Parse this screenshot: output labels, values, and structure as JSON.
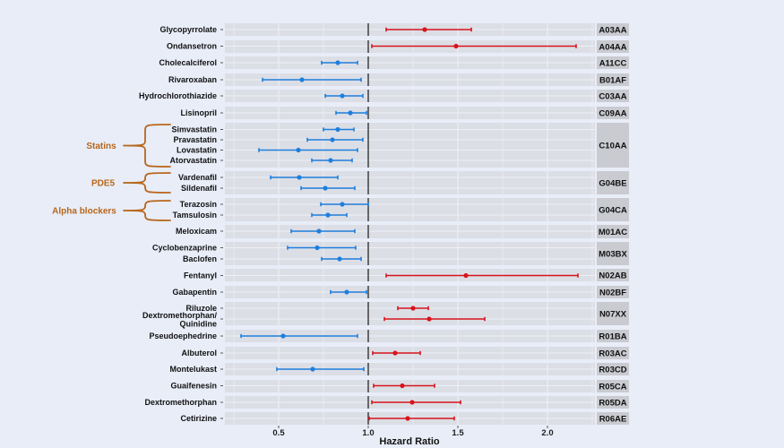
{
  "colors": {
    "background": "#e8edf8",
    "panel": "#dcdee6",
    "grid": "#eef0f5",
    "strip": "#c9cbd1",
    "protective": "#1e7fdc",
    "risk": "#d8141b",
    "reference": "#333333",
    "group": "#b8661a"
  },
  "chart_data": {
    "type": "forest",
    "xlabel": "Hazard Ratio",
    "xlim": [
      0.2,
      2.26
    ],
    "reference_line": 1.0,
    "xticks": [
      {
        "value": 0.5,
        "label": "0.5"
      },
      {
        "value": 1.0,
        "label": "1.0"
      },
      {
        "value": 1.5,
        "label": "1.5"
      },
      {
        "value": 2.0,
        "label": "2.0"
      }
    ],
    "panels": [
      {
        "code": "A03AA",
        "drugs": [
          {
            "name": "Glycopyrrolate",
            "hr": 1.315,
            "lo": 1.1,
            "hi": 1.575
          }
        ]
      },
      {
        "code": "A04AA",
        "drugs": [
          {
            "name": "Ondansetron",
            "hr": 1.49,
            "lo": 1.02,
            "hi": 2.16
          }
        ]
      },
      {
        "code": "A11CC",
        "drugs": [
          {
            "name": "Cholecalciferol",
            "hr": 0.83,
            "lo": 0.74,
            "hi": 0.94
          }
        ]
      },
      {
        "code": "B01AF",
        "drugs": [
          {
            "name": "Rivaroxaban",
            "hr": 0.63,
            "lo": 0.41,
            "hi": 0.96
          }
        ]
      },
      {
        "code": "C03AA",
        "drugs": [
          {
            "name": "Hydrochlorothiazide",
            "hr": 0.855,
            "lo": 0.76,
            "hi": 0.97
          }
        ]
      },
      {
        "code": "C09AA",
        "drugs": [
          {
            "name": "Lisinopril",
            "hr": 0.9,
            "lo": 0.82,
            "hi": 0.99
          }
        ]
      },
      {
        "code": "C10AA",
        "drugs": [
          {
            "name": "Simvastatin",
            "hr": 0.83,
            "lo": 0.75,
            "hi": 0.92
          },
          {
            "name": "Pravastatin",
            "hr": 0.8,
            "lo": 0.66,
            "hi": 0.97
          },
          {
            "name": "Lovastatin",
            "hr": 0.61,
            "lo": 0.39,
            "hi": 0.94
          },
          {
            "name": "Atorvastatin",
            "hr": 0.79,
            "lo": 0.685,
            "hi": 0.91
          }
        ]
      },
      {
        "code": "G04BE",
        "drugs": [
          {
            "name": "Vardenafil",
            "hr": 0.615,
            "lo": 0.455,
            "hi": 0.83
          },
          {
            "name": "Sildenafil",
            "hr": 0.76,
            "lo": 0.625,
            "hi": 0.925
          }
        ]
      },
      {
        "code": "G04CA",
        "drugs": [
          {
            "name": "Terazosin",
            "hr": 0.855,
            "lo": 0.735,
            "hi": 1.0
          },
          {
            "name": "Tamsulosin",
            "hr": 0.775,
            "lo": 0.685,
            "hi": 0.88
          }
        ]
      },
      {
        "code": "M01AC",
        "drugs": [
          {
            "name": "Meloxicam",
            "hr": 0.725,
            "lo": 0.57,
            "hi": 0.925
          }
        ]
      },
      {
        "code": "M03BX",
        "drugs": [
          {
            "name": "Cyclobenzaprine",
            "hr": 0.715,
            "lo": 0.55,
            "hi": 0.93
          },
          {
            "name": "Baclofen",
            "hr": 0.84,
            "lo": 0.74,
            "hi": 0.96
          }
        ]
      },
      {
        "code": "N02AB",
        "drugs": [
          {
            "name": "Fentanyl",
            "hr": 1.545,
            "lo": 1.1,
            "hi": 2.17
          }
        ]
      },
      {
        "code": "N02BF",
        "drugs": [
          {
            "name": "Gabapentin",
            "hr": 0.88,
            "lo": 0.79,
            "hi": 0.99
          }
        ]
      },
      {
        "code": "N07XX",
        "drugs": [
          {
            "name": "Riluzole",
            "hr": 1.25,
            "lo": 1.165,
            "hi": 1.335
          },
          {
            "name": "Dextromethorphan/ Quinidine",
            "name_lines": [
              "Dextromethorphan/",
              "Quinidine"
            ],
            "hr": 1.34,
            "lo": 1.09,
            "hi": 1.65
          }
        ]
      },
      {
        "code": "R01BA",
        "drugs": [
          {
            "name": "Pseudoephedrine",
            "hr": 0.525,
            "lo": 0.29,
            "hi": 0.94
          }
        ]
      },
      {
        "code": "R03AC",
        "drugs": [
          {
            "name": "Albuterol",
            "hr": 1.15,
            "lo": 1.025,
            "hi": 1.29
          }
        ]
      },
      {
        "code": "R03CD",
        "drugs": [
          {
            "name": "Montelukast",
            "hr": 0.69,
            "lo": 0.49,
            "hi": 0.975
          }
        ]
      },
      {
        "code": "R05CA",
        "drugs": [
          {
            "name": "Guaifenesin",
            "hr": 1.19,
            "lo": 1.03,
            "hi": 1.37
          }
        ]
      },
      {
        "code": "R05DA",
        "drugs": [
          {
            "name": "Dextromethorphan",
            "hr": 1.245,
            "lo": 1.02,
            "hi": 1.515
          }
        ]
      },
      {
        "code": "R06AE",
        "drugs": [
          {
            "name": "Cetirizine",
            "hr": 1.22,
            "lo": 1.005,
            "hi": 1.48
          }
        ]
      }
    ],
    "groups": [
      {
        "label": "Statins",
        "panel": "C10AA"
      },
      {
        "label": "PDE5",
        "panel": "G04BE"
      },
      {
        "label": "Alpha blockers",
        "panel": "G04CA"
      }
    ]
  }
}
